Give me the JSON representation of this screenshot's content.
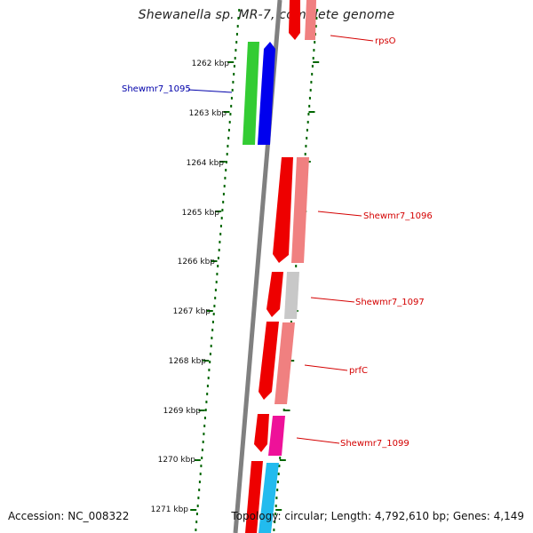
{
  "title": "Shewanella sp. MR-7, complete genome",
  "footer": {
    "accession": "Accession: NC_008322",
    "topology": "Topology: circular; Length: 4,792,610 bp; Genes: 4,149"
  },
  "ticks": [
    {
      "label": "1262 kbp"
    },
    {
      "label": "1263 kbp"
    },
    {
      "label": "1264 kbp"
    },
    {
      "label": "1265 kbp"
    },
    {
      "label": "1266 kbp"
    },
    {
      "label": "1267 kbp"
    },
    {
      "label": "1268 kbp"
    },
    {
      "label": "1269 kbp"
    },
    {
      "label": "1270 kbp"
    },
    {
      "label": "1271 kbp"
    }
  ],
  "genes": [
    {
      "label": "rpsO",
      "color": "#d40000"
    },
    {
      "label": "Shewmr7_1095",
      "color": "#0000aa"
    },
    {
      "label": "Shewmr7_1096",
      "color": "#d40000"
    },
    {
      "label": "Shewmr7_1097",
      "color": "#d40000"
    },
    {
      "label": "prfC",
      "color": "#d40000"
    },
    {
      "label": "Shewmr7_1099",
      "color": "#d40000"
    }
  ],
  "colors": {
    "backbone": "#808080",
    "tick_marks": "#006600",
    "cds_red": "#ee0000",
    "feature_pink": "#f08080",
    "feature_green": "#33cc33",
    "feature_blue": "#0000ee",
    "feature_gray": "#c8c8c8",
    "feature_magenta": "#ee1199",
    "feature_cyan": "#22bbee"
  }
}
